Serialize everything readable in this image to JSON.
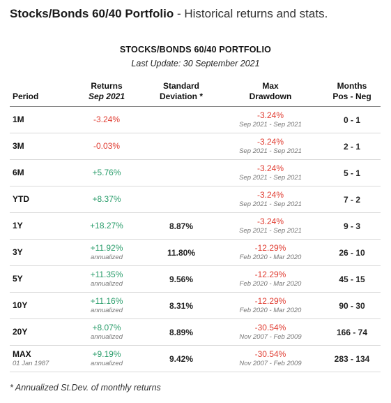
{
  "heading": {
    "strong": "Stocks/Bonds 60/40 Portfolio",
    "rest": " - Historical returns and stats."
  },
  "table": {
    "title": "STOCKS/BONDS 60/40 PORTFOLIO",
    "subtitle": "Last Update: 30 September 2021",
    "headers": {
      "period": "Period",
      "returns_line1": "Returns",
      "returns_line2": "Sep 2021",
      "std_line1": "Standard",
      "std_line2": "Deviation *",
      "dd_line1": "Max",
      "dd_line2": "Drawdown",
      "months_line1": "Months",
      "months_line2": "Pos - Neg"
    },
    "rows": [
      {
        "period": "1M",
        "period_sub": "",
        "ret": "-3.24%",
        "ret_sign": "neg",
        "ann": "",
        "std": "",
        "dd": "-3.24%",
        "dd_range": "Sep 2021 - Sep 2021",
        "months": "0 - 1"
      },
      {
        "period": "3M",
        "period_sub": "",
        "ret": "-0.03%",
        "ret_sign": "neg",
        "ann": "",
        "std": "",
        "dd": "-3.24%",
        "dd_range": "Sep 2021 - Sep 2021",
        "months": "2 - 1"
      },
      {
        "period": "6M",
        "period_sub": "",
        "ret": "+5.76%",
        "ret_sign": "pos",
        "ann": "",
        "std": "",
        "dd": "-3.24%",
        "dd_range": "Sep 2021 - Sep 2021",
        "months": "5 - 1"
      },
      {
        "period": "YTD",
        "period_sub": "",
        "ret": "+8.37%",
        "ret_sign": "pos",
        "ann": "",
        "std": "",
        "dd": "-3.24%",
        "dd_range": "Sep 2021 - Sep 2021",
        "months": "7 - 2"
      },
      {
        "period": "1Y",
        "period_sub": "",
        "ret": "+18.27%",
        "ret_sign": "pos",
        "ann": "",
        "std": "8.87%",
        "dd": "-3.24%",
        "dd_range": "Sep 2021 - Sep 2021",
        "months": "9 - 3"
      },
      {
        "period": "3Y",
        "period_sub": "",
        "ret": "+11.92%",
        "ret_sign": "pos",
        "ann": "annualized",
        "std": "11.80%",
        "dd": "-12.29%",
        "dd_range": "Feb 2020 - Mar 2020",
        "months": "26 - 10"
      },
      {
        "period": "5Y",
        "period_sub": "",
        "ret": "+11.35%",
        "ret_sign": "pos",
        "ann": "annualized",
        "std": "9.56%",
        "dd": "-12.29%",
        "dd_range": "Feb 2020 - Mar 2020",
        "months": "45 - 15"
      },
      {
        "period": "10Y",
        "period_sub": "",
        "ret": "+11.16%",
        "ret_sign": "pos",
        "ann": "annualized",
        "std": "8.31%",
        "dd": "-12.29%",
        "dd_range": "Feb 2020 - Mar 2020",
        "months": "90 - 30"
      },
      {
        "period": "20Y",
        "period_sub": "",
        "ret": "+8.07%",
        "ret_sign": "pos",
        "ann": "annualized",
        "std": "8.89%",
        "dd": "-30.54%",
        "dd_range": "Nov 2007 - Feb 2009",
        "months": "166 - 74"
      },
      {
        "period": "MAX",
        "period_sub": "01 Jan 1987",
        "ret": "+9.19%",
        "ret_sign": "pos",
        "ann": "annualized",
        "std": "9.42%",
        "dd": "-30.54%",
        "dd_range": "Nov 2007 - Feb 2009",
        "months": "283 - 134"
      }
    ]
  },
  "footnote": "* Annualized St.Dev. of monthly returns",
  "colors": {
    "negative": "#e03c31",
    "positive": "#2a9d6b"
  }
}
